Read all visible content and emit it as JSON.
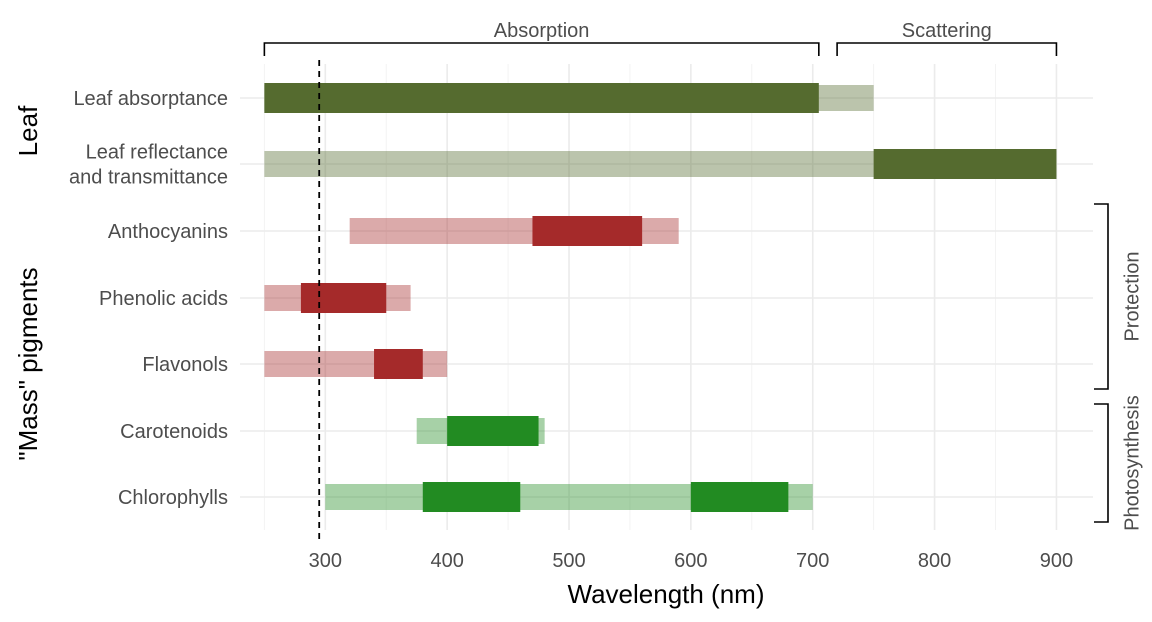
{
  "chart_data": {
    "type": "bar",
    "orientation": "horizontal-range",
    "xlabel": "Wavelength (nm)",
    "xlim": [
      230,
      930
    ],
    "xticks": [
      300,
      400,
      500,
      600,
      700,
      800,
      900
    ],
    "grid": true,
    "reference_line": {
      "x": 295,
      "style": "dashed"
    },
    "colors": {
      "leaf": "#556b2f",
      "protection": "#a52a2a",
      "photosynthesis": "#228b22"
    },
    "groups": [
      {
        "name": "Leaf",
        "categories": [
          "Leaf absorptance",
          "Leaf reflectance and transmittance"
        ]
      },
      {
        "name": "\"Mass\" pigments",
        "categories": [
          "Anthocyanins",
          "Phenolic acids",
          "Flavonols",
          "Carotenoids",
          "Chlorophylls"
        ]
      }
    ],
    "categories": [
      {
        "label_lines": [
          "Leaf absorptance"
        ],
        "color_key": "leaf",
        "light": [
          [
            250,
            750
          ]
        ],
        "dark": [
          [
            250,
            705
          ]
        ]
      },
      {
        "label_lines": [
          "Leaf reflectance",
          "and transmittance"
        ],
        "color_key": "leaf",
        "light": [
          [
            250,
            900
          ]
        ],
        "dark": [
          [
            750,
            900
          ]
        ]
      },
      {
        "label_lines": [
          "Anthocyanins"
        ],
        "color_key": "protection",
        "light": [
          [
            320,
            590
          ]
        ],
        "dark": [
          [
            470,
            560
          ]
        ]
      },
      {
        "label_lines": [
          "Phenolic acids"
        ],
        "color_key": "protection",
        "light": [
          [
            250,
            370
          ]
        ],
        "dark": [
          [
            280,
            350
          ]
        ]
      },
      {
        "label_lines": [
          "Flavonols"
        ],
        "color_key": "protection",
        "light": [
          [
            250,
            400
          ]
        ],
        "dark": [
          [
            340,
            380
          ]
        ]
      },
      {
        "label_lines": [
          "Carotenoids"
        ],
        "color_key": "photosynthesis",
        "light": [
          [
            375,
            480
          ]
        ],
        "dark": [
          [
            400,
            475
          ]
        ]
      },
      {
        "label_lines": [
          "Chlorophylls"
        ],
        "color_key": "photosynthesis",
        "light": [
          [
            300,
            700
          ]
        ],
        "dark": [
          [
            380,
            460
          ],
          [
            600,
            680
          ]
        ]
      }
    ],
    "top_brackets": [
      {
        "label": "Absorption",
        "x_range": [
          250,
          705
        ]
      },
      {
        "label": "Scattering",
        "x_range": [
          720,
          900
        ]
      }
    ],
    "right_brackets": [
      {
        "label": "Protection",
        "categories": [
          "Anthocyanins",
          "Phenolic acids",
          "Flavonols"
        ]
      },
      {
        "label": "Photosynthesis",
        "categories": [
          "Carotenoids",
          "Chlorophylls"
        ]
      }
    ]
  }
}
